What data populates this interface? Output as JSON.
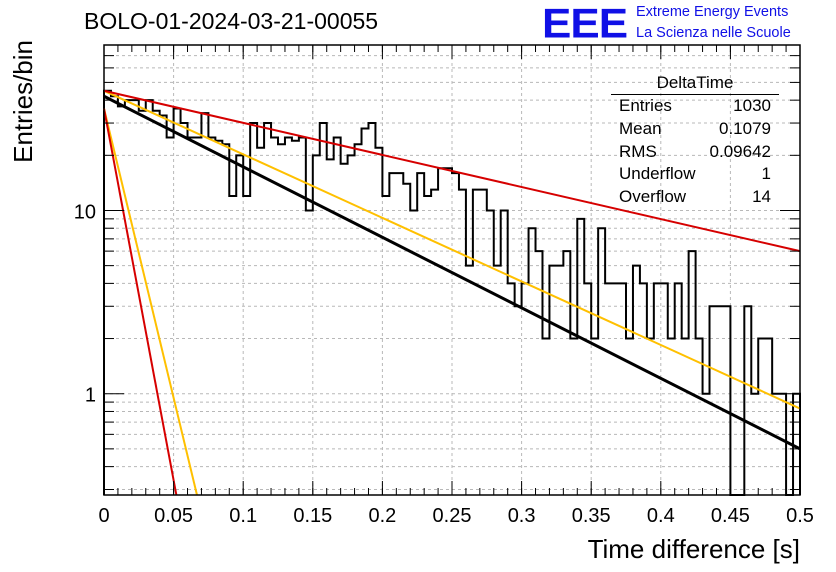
{
  "chart_data": {
    "type": "histogram",
    "title": "BOLO-01-2024-03-21-00055",
    "xlabel": "Time difference [s]",
    "ylabel": "Entries/bin",
    "xlim": [
      0,
      0.5
    ],
    "ylim": [
      0.28,
      80
    ],
    "y_scale": "log",
    "grid": true,
    "x_ticks": [
      "0",
      "0.05",
      "0.1",
      "0.15",
      "0.2",
      "0.25",
      "0.3",
      "0.35",
      "0.4",
      "0.45",
      "0.5"
    ],
    "y_ticks": [
      "1",
      "10"
    ],
    "bin_width": 0.005,
    "bin_values": [
      45,
      42,
      37,
      40,
      40,
      35,
      40,
      35,
      33,
      25,
      36,
      30,
      25,
      25,
      34,
      25,
      24,
      23,
      12,
      20,
      12,
      30,
      22,
      30,
      25,
      23,
      25,
      24,
      25,
      10,
      20,
      30,
      19,
      25,
      18,
      20,
      23,
      28,
      30,
      22,
      12,
      16,
      16,
      14,
      10,
      16,
      12,
      13,
      17,
      17,
      16,
      13,
      5,
      13,
      13,
      10,
      5,
      10,
      4,
      3,
      4,
      8,
      6,
      2,
      5,
      5,
      6,
      2,
      9,
      4,
      2,
      8,
      4,
      4,
      4,
      2,
      5,
      4,
      2,
      4,
      4,
      2,
      4,
      2,
      6,
      2,
      1,
      3,
      3,
      3,
      0.01,
      0.01,
      3,
      1,
      2,
      2,
      1,
      1,
      0.01,
      1
    ],
    "fits": [
      {
        "color": "#000000",
        "points": [
          [
            0.0,
            42.0
          ],
          [
            0.5,
            0.5
          ]
        ]
      },
      {
        "color": "#ffc000",
        "points": [
          [
            0.0,
            45.0
          ],
          [
            0.5,
            0.83
          ]
        ]
      },
      {
        "color": "#d60000",
        "points": [
          [
            0.0,
            45.0
          ],
          [
            0.5,
            6.0
          ]
        ]
      },
      {
        "color": "#ffc000",
        "points": [
          [
            0.0,
            36.0
          ],
          [
            0.0668,
            0.28
          ]
        ]
      },
      {
        "color": "#d60000",
        "points": [
          [
            0.0,
            36.0
          ],
          [
            0.052,
            0.28
          ]
        ]
      }
    ]
  },
  "stats_box": {
    "title": "DeltaTime",
    "rows": [
      {
        "label": "Entries",
        "value": "1030"
      },
      {
        "label": "Mean",
        "value": "0.1079"
      },
      {
        "label": "RMS",
        "value": "0.09642"
      },
      {
        "label": "Underflow",
        "value": "1"
      },
      {
        "label": "Overflow",
        "value": "14"
      }
    ]
  },
  "logo": {
    "mark": "EEE",
    "line1": "Extreme Energy Events",
    "line2": "La Scienza nelle Scuole",
    "color": "#1010e6"
  }
}
